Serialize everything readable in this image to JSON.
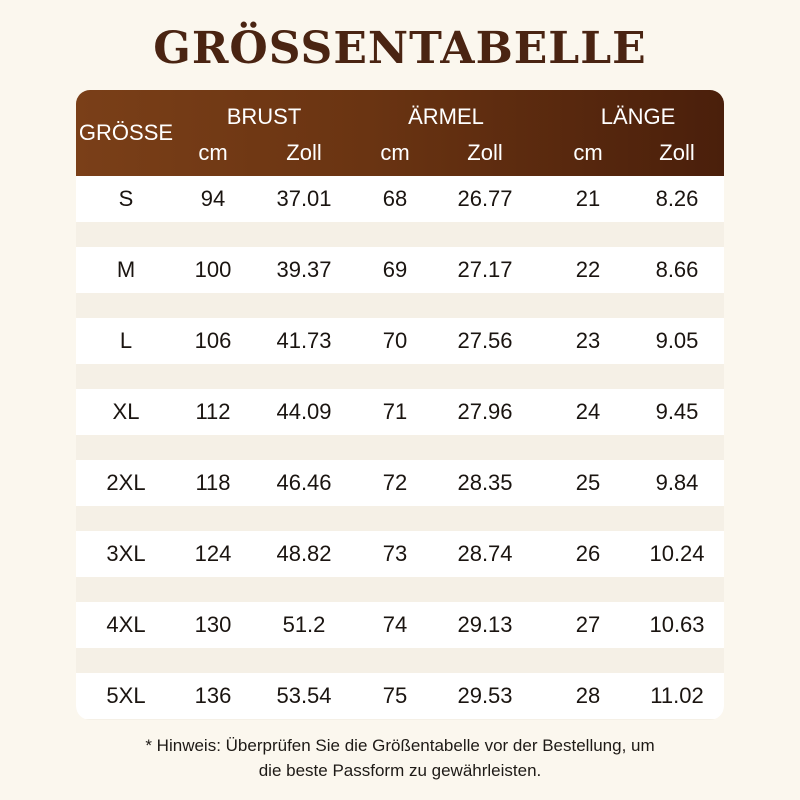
{
  "title": "GRÖSSENTABELLE",
  "header": {
    "size_label": "GRÖSSE",
    "groups": [
      "BRUST",
      "ÄRMEL",
      "LÄNGE"
    ],
    "units": [
      "cm",
      "Zoll",
      "cm",
      "Zoll",
      "cm",
      "Zoll"
    ]
  },
  "rows": [
    [
      "S",
      "94",
      "37.01",
      "68",
      "26.77",
      "21",
      "8.26"
    ],
    [
      "M",
      "100",
      "39.37",
      "69",
      "27.17",
      "22",
      "8.66"
    ],
    [
      "L",
      "106",
      "41.73",
      "70",
      "27.56",
      "23",
      "9.05"
    ],
    [
      "XL",
      "112",
      "44.09",
      "71",
      "27.96",
      "24",
      "9.45"
    ],
    [
      "2XL",
      "118",
      "46.46",
      "72",
      "28.35",
      "25",
      "9.84"
    ],
    [
      "3XL",
      "124",
      "48.82",
      "73",
      "28.74",
      "26",
      "10.24"
    ],
    [
      "4XL",
      "130",
      "51.2",
      "74",
      "29.13",
      "27",
      "10.63"
    ],
    [
      "5XL",
      "136",
      "53.54",
      "75",
      "29.53",
      "28",
      "11.02"
    ]
  ],
  "note": {
    "line1": "* Hinweis: Überprüfen Sie die Größentabelle vor der Bestellung, um",
    "line2": "die beste Passform zu gewährleisten."
  }
}
